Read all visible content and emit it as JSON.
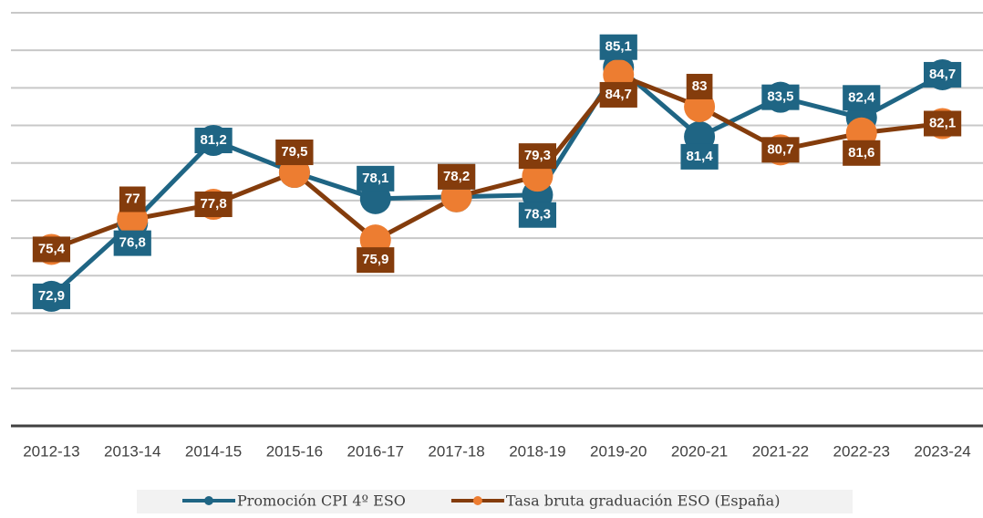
{
  "chart_data": {
    "type": "line",
    "categories": [
      "2012-13",
      "2013-14",
      "2014-15",
      "2015-16",
      "2016-17",
      "2017-18",
      "2018-19",
      "2019-20",
      "2020-21",
      "2021-22",
      "2022-23",
      "2023-24"
    ],
    "series": [
      {
        "name": "Promoción CPI 4º ESO",
        "color": "#1f6584",
        "marker_color": "#1f6584",
        "values": [
          72.9,
          76.8,
          81.2,
          79.5,
          78.1,
          78.2,
          78.3,
          85.1,
          81.4,
          83.5,
          82.4,
          84.7
        ],
        "value_labels": [
          "72,9",
          "76,8",
          "81,2",
          "79,5",
          "78,1",
          "78,2",
          "78,3",
          "85,1",
          "81,4",
          "83,5",
          "82,4",
          "84,7"
        ]
      },
      {
        "name": "Tasa bruta graduación ESO (España)",
        "color": "#843c0c",
        "marker_color": "#ed7d31",
        "values": [
          75.4,
          77,
          77.8,
          79.5,
          75.9,
          78.2,
          79.3,
          84.7,
          83,
          80.7,
          81.6,
          82.1
        ],
        "value_labels": [
          "75,4",
          "77",
          "77,8",
          "79,5",
          "75,9",
          "78,2",
          "79,3",
          "84,7",
          "83",
          "80,7",
          "81,6",
          "82,1"
        ]
      }
    ],
    "ylim": [
      66,
      88
    ],
    "yticks": [
      68,
      70,
      72,
      74,
      76,
      78,
      80,
      82,
      84,
      86,
      88
    ],
    "grid": true,
    "legend": "bottom"
  }
}
